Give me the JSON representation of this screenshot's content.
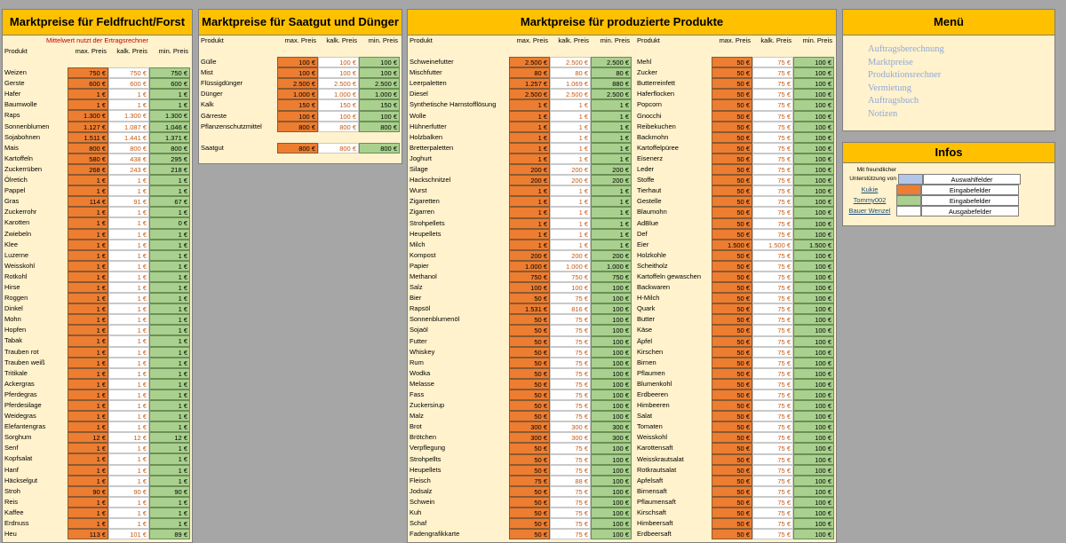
{
  "feld": {
    "title": "Marktpreise für Feldfrucht/Forst",
    "note": "Mittelwert nutzt der Ertragsrechner",
    "headers": [
      "Produkt",
      "max. Preis",
      "kalk. Preis",
      "min. Preis"
    ],
    "rows": [
      [
        "Weizen",
        "750 €",
        "750 €",
        "750 €"
      ],
      [
        "Gerste",
        "600 €",
        "600 €",
        "600 €"
      ],
      [
        "Hafer",
        "1 €",
        "1 €",
        "1 €"
      ],
      [
        "Baumwolle",
        "1 €",
        "1 €",
        "1 €"
      ],
      [
        "Raps",
        "1.300 €",
        "1.300 €",
        "1.300 €"
      ],
      [
        "Sonnenblumen",
        "1.127 €",
        "1.087 €",
        "1.046 €"
      ],
      [
        "Sojabohnen",
        "1.511 €",
        "1.441 €",
        "1.371 €"
      ],
      [
        "Mais",
        "800 €",
        "800 €",
        "800 €"
      ],
      [
        "Kartoffeln",
        "580 €",
        "438 €",
        "295 €"
      ],
      [
        "Zuckerrüben",
        "268 €",
        "243 €",
        "218 €"
      ],
      [
        "Ölretich",
        "1 €",
        "1 €",
        "1 €"
      ],
      [
        "Pappel",
        "1 €",
        "1 €",
        "1 €"
      ],
      [
        "Gras",
        "114 €",
        "91 €",
        "67 €"
      ],
      [
        "Zuckerrohr",
        "1 €",
        "1 €",
        "1 €"
      ],
      [
        "Karotten",
        "1 €",
        "1 €",
        "0 €"
      ],
      [
        "Zwiebeln",
        "1 €",
        "1 €",
        "1 €"
      ],
      [
        "Klee",
        "1 €",
        "1 €",
        "1 €"
      ],
      [
        "Luzerne",
        "1 €",
        "1 €",
        "1 €"
      ],
      [
        "Weisskohl",
        "1 €",
        "1 €",
        "1 €"
      ],
      [
        "Rotkohl",
        "1 €",
        "1 €",
        "1 €"
      ],
      [
        "Hirse",
        "1 €",
        "1 €",
        "1 €"
      ],
      [
        "Roggen",
        "1 €",
        "1 €",
        "1 €"
      ],
      [
        "Dinkel",
        "1 €",
        "1 €",
        "1 €"
      ],
      [
        "Mohn",
        "1 €",
        "1 €",
        "1 €"
      ],
      [
        "Hopfen",
        "1 €",
        "1 €",
        "1 €"
      ],
      [
        "Tabak",
        "1 €",
        "1 €",
        "1 €"
      ],
      [
        "Trauben rot",
        "1 €",
        "1 €",
        "1 €"
      ],
      [
        "Trauben weiß",
        "1 €",
        "1 €",
        "1 €"
      ],
      [
        "Tritikale",
        "1 €",
        "1 €",
        "1 €"
      ],
      [
        "Ackergras",
        "1 €",
        "1 €",
        "1 €"
      ],
      [
        "Pferdegras",
        "1 €",
        "1 €",
        "1 €"
      ],
      [
        "Pferdesilage",
        "1 €",
        "1 €",
        "1 €"
      ],
      [
        "Weidegras",
        "1 €",
        "1 €",
        "1 €"
      ],
      [
        "Elefantengras",
        "1 €",
        "1 €",
        "1 €"
      ],
      [
        "Sorghum",
        "12 €",
        "12 €",
        "12 €"
      ],
      [
        "Senf",
        "1 €",
        "1 €",
        "1 €"
      ],
      [
        "Kopfsalat",
        "1 €",
        "1 €",
        "1 €"
      ],
      [
        "Hanf",
        "1 €",
        "1 €",
        "1 €"
      ],
      [
        "Häckselgut",
        "1 €",
        "1 €",
        "1 €"
      ],
      [
        "Stroh",
        "90 €",
        "90 €",
        "90 €"
      ],
      [
        "Reis",
        "1 €",
        "1 €",
        "1 €"
      ],
      [
        "Kaffee",
        "1 €",
        "1 €",
        "1 €"
      ],
      [
        "Erdnuss",
        "1 €",
        "1 €",
        "1 €"
      ],
      [
        "Heu",
        "113 €",
        "101 €",
        "89 €"
      ]
    ]
  },
  "saat": {
    "title": "Marktpreise für Saatgut und Dünger",
    "headers": [
      "Produkt",
      "max. Preis",
      "kalk. Preis",
      "min. Preis"
    ],
    "rows": [
      [
        "Gülle",
        "100 €",
        "100 €",
        "100 €"
      ],
      [
        "Mist",
        "100 €",
        "100 €",
        "100 €"
      ],
      [
        "Flüssigdünger",
        "2.500 €",
        "2.500 €",
        "2.500 €"
      ],
      [
        "Dünger",
        "1.000 €",
        "1.000 €",
        "1.000 €"
      ],
      [
        "Kalk",
        "150 €",
        "150 €",
        "150 €"
      ],
      [
        "Gärreste",
        "100 €",
        "100 €",
        "100 €"
      ],
      [
        "Pflanzenschutzmittel",
        "800 €",
        "800 €",
        "800 €"
      ],
      [
        "Saatgut",
        "800 €",
        "800 €",
        "800 €"
      ]
    ]
  },
  "prod": {
    "title": "Marktpreise für produzierte Produkte",
    "headers": [
      "Produkt",
      "max. Preis",
      "kalk. Preis",
      "min. Preis"
    ],
    "left": [
      [
        "Schweinefutter",
        "2.500 €",
        "2.500 €",
        "2.500 €"
      ],
      [
        "Mischfutter",
        "80 €",
        "80 €",
        "80 €"
      ],
      [
        "Leerpaletten",
        "1.257 €",
        "1.069 €",
        "880 €"
      ],
      [
        "Diesel",
        "2.500 €",
        "2.500 €",
        "2.500 €"
      ],
      [
        "Synthetische Harnstofflösung",
        "1 €",
        "1 €",
        "1 €"
      ],
      [
        "Wolle",
        "1 €",
        "1 €",
        "1 €"
      ],
      [
        "Hühnerfutter",
        "1 €",
        "1 €",
        "1 €"
      ],
      [
        "Holzbalken",
        "1 €",
        "1 €",
        "1 €"
      ],
      [
        "Bretterpaletten",
        "1 €",
        "1 €",
        "1 €"
      ],
      [
        "Joghurt",
        "1 €",
        "1 €",
        "1 €"
      ],
      [
        "Silage",
        "200 €",
        "200 €",
        "200 €"
      ],
      [
        "Hackschnitzel",
        "200 €",
        "200 €",
        "200 €"
      ],
      [
        "Wurst",
        "1 €",
        "1 €",
        "1 €"
      ],
      [
        "Zigaretten",
        "1 €",
        "1 €",
        "1 €"
      ],
      [
        "Zigarren",
        "1 €",
        "1 €",
        "1 €"
      ],
      [
        "Strohpellets",
        "1 €",
        "1 €",
        "1 €"
      ],
      [
        "Heupellets",
        "1 €",
        "1 €",
        "1 €"
      ],
      [
        "Milch",
        "1 €",
        "1 €",
        "1 €"
      ],
      [
        "Kompost",
        "200 €",
        "200 €",
        "200 €"
      ],
      [
        "Papier",
        "1.000 €",
        "1.000 €",
        "1.000 €"
      ],
      [
        "Methanol",
        "750 €",
        "750 €",
        "750 €"
      ],
      [
        "Salz",
        "100 €",
        "100 €",
        "100 €"
      ],
      [
        "Bier",
        "50 €",
        "75 €",
        "100 €"
      ],
      [
        "Rapsöl",
        "1.531 €",
        "816 €",
        "100 €"
      ],
      [
        "Sonnenblumenöl",
        "50 €",
        "75 €",
        "100 €"
      ],
      [
        "Sojaöl",
        "50 €",
        "75 €",
        "100 €"
      ],
      [
        "Futter",
        "50 €",
        "75 €",
        "100 €"
      ],
      [
        "Whiskey",
        "50 €",
        "75 €",
        "100 €"
      ],
      [
        "Rum",
        "50 €",
        "75 €",
        "100 €"
      ],
      [
        "Wodka",
        "50 €",
        "75 €",
        "100 €"
      ],
      [
        "Melasse",
        "50 €",
        "75 €",
        "100 €"
      ],
      [
        "Fass",
        "50 €",
        "75 €",
        "100 €"
      ],
      [
        "Zuckersirup",
        "50 €",
        "75 €",
        "100 €"
      ],
      [
        "Malz",
        "50 €",
        "75 €",
        "100 €"
      ],
      [
        "Brot",
        "300 €",
        "300 €",
        "300 €"
      ],
      [
        "Brötchen",
        "300 €",
        "300 €",
        "300 €"
      ],
      [
        "Verpflegung",
        "50 €",
        "75 €",
        "100 €"
      ],
      [
        "Strohpellts",
        "50 €",
        "75 €",
        "100 €"
      ],
      [
        "Heupellets",
        "50 €",
        "75 €",
        "100 €"
      ],
      [
        "Fleisch",
        "75 €",
        "88 €",
        "100 €"
      ],
      [
        "Jodsalz",
        "50 €",
        "75 €",
        "100 €"
      ],
      [
        "Schwein",
        "50 €",
        "75 €",
        "100 €"
      ],
      [
        "Kuh",
        "50 €",
        "75 €",
        "100 €"
      ],
      [
        "Schaf",
        "50 €",
        "75 €",
        "100 €"
      ],
      [
        "Fadengrafikkarte",
        "50 €",
        "75 €",
        "100 €"
      ]
    ],
    "right": [
      [
        "Mehl",
        "50 €",
        "75 €",
        "100 €"
      ],
      [
        "Zucker",
        "50 €",
        "75 €",
        "100 €"
      ],
      [
        "Butterreinfett",
        "50 €",
        "75 €",
        "100 €"
      ],
      [
        "Haferflocken",
        "50 €",
        "75 €",
        "100 €"
      ],
      [
        "Popcorn",
        "50 €",
        "75 €",
        "100 €"
      ],
      [
        "Gnocchi",
        "50 €",
        "75 €",
        "100 €"
      ],
      [
        "Reibekuchen",
        "50 €",
        "75 €",
        "100 €"
      ],
      [
        "Backmohn",
        "50 €",
        "75 €",
        "100 €"
      ],
      [
        "Kartoffelpüree",
        "50 €",
        "75 €",
        "100 €"
      ],
      [
        "Eisenerz",
        "50 €",
        "75 €",
        "100 €"
      ],
      [
        "Leder",
        "50 €",
        "75 €",
        "100 €"
      ],
      [
        "Stoffe",
        "50 €",
        "75 €",
        "100 €"
      ],
      [
        "Tierhaut",
        "50 €",
        "75 €",
        "100 €"
      ],
      [
        "Gestelle",
        "50 €",
        "75 €",
        "100 €"
      ],
      [
        "Blaumohn",
        "50 €",
        "75 €",
        "100 €"
      ],
      [
        "AdBlue",
        "50 €",
        "75 €",
        "100 €"
      ],
      [
        "Def",
        "50 €",
        "75 €",
        "100 €"
      ],
      [
        "Eier",
        "1.500 €",
        "1.500 €",
        "1.500 €"
      ],
      [
        "Holzkohle",
        "50 €",
        "75 €",
        "100 €"
      ],
      [
        "Scheitholz",
        "50 €",
        "75 €",
        "100 €"
      ],
      [
        "Kartoffeln gewaschen",
        "50 €",
        "75 €",
        "100 €"
      ],
      [
        "Backwaren",
        "50 €",
        "75 €",
        "100 €"
      ],
      [
        "H-Milch",
        "50 €",
        "75 €",
        "100 €"
      ],
      [
        "Quark",
        "50 €",
        "75 €",
        "100 €"
      ],
      [
        "Butter",
        "50 €",
        "75 €",
        "100 €"
      ],
      [
        "Käse",
        "50 €",
        "75 €",
        "100 €"
      ],
      [
        "Äpfel",
        "50 €",
        "75 €",
        "100 €"
      ],
      [
        "Kirschen",
        "50 €",
        "75 €",
        "100 €"
      ],
      [
        "Birnen",
        "50 €",
        "75 €",
        "100 €"
      ],
      [
        "Pflaumen",
        "50 €",
        "75 €",
        "100 €"
      ],
      [
        "Blumenkohl",
        "50 €",
        "75 €",
        "100 €"
      ],
      [
        "Erdbeeren",
        "50 €",
        "75 €",
        "100 €"
      ],
      [
        "Himbeeren",
        "50 €",
        "75 €",
        "100 €"
      ],
      [
        "Salat",
        "50 €",
        "75 €",
        "100 €"
      ],
      [
        "Tomaten",
        "50 €",
        "75 €",
        "100 €"
      ],
      [
        "Weisskohl",
        "50 €",
        "75 €",
        "100 €"
      ],
      [
        "Karottensaft",
        "50 €",
        "75 €",
        "100 €"
      ],
      [
        "Weisskrautsalat",
        "50 €",
        "75 €",
        "100 €"
      ],
      [
        "Rotkrautsalat",
        "50 €",
        "75 €",
        "100 €"
      ],
      [
        "Apfelsaft",
        "50 €",
        "75 €",
        "100 €"
      ],
      [
        "Birnensaft",
        "50 €",
        "75 €",
        "100 €"
      ],
      [
        "Pflaumensaft",
        "50 €",
        "75 €",
        "100 €"
      ],
      [
        "Kirschsaft",
        "50 €",
        "75 €",
        "100 €"
      ],
      [
        "Himbeersaft",
        "50 €",
        "75 €",
        "100 €"
      ],
      [
        "Erdbeersaft",
        "50 €",
        "75 €",
        "100 €"
      ]
    ]
  },
  "menu": {
    "title": "Menü",
    "items": [
      "Auftragsberechnung",
      "Marktpreise",
      "Produktionsrechner",
      "Vermietung",
      "Auftragsbuch",
      "Notizen"
    ]
  },
  "infos": {
    "title": "Infos",
    "thanks_line1": "Mit freundlicher",
    "thanks_line2": "Unterstützung von",
    "legend": [
      {
        "who": "Kukie",
        "label": "Eingabefelder",
        "color": "#ed7d31"
      },
      {
        "who": "Tommy002",
        "label": "Eingabefelder",
        "color": "#a9d08e"
      },
      {
        "who": "Bauer Wenzel",
        "label": "Ausgabefelder",
        "color": "#ffffff"
      }
    ],
    "first_label": "Auswahlfelder",
    "first_color": "#b4c6e7"
  }
}
